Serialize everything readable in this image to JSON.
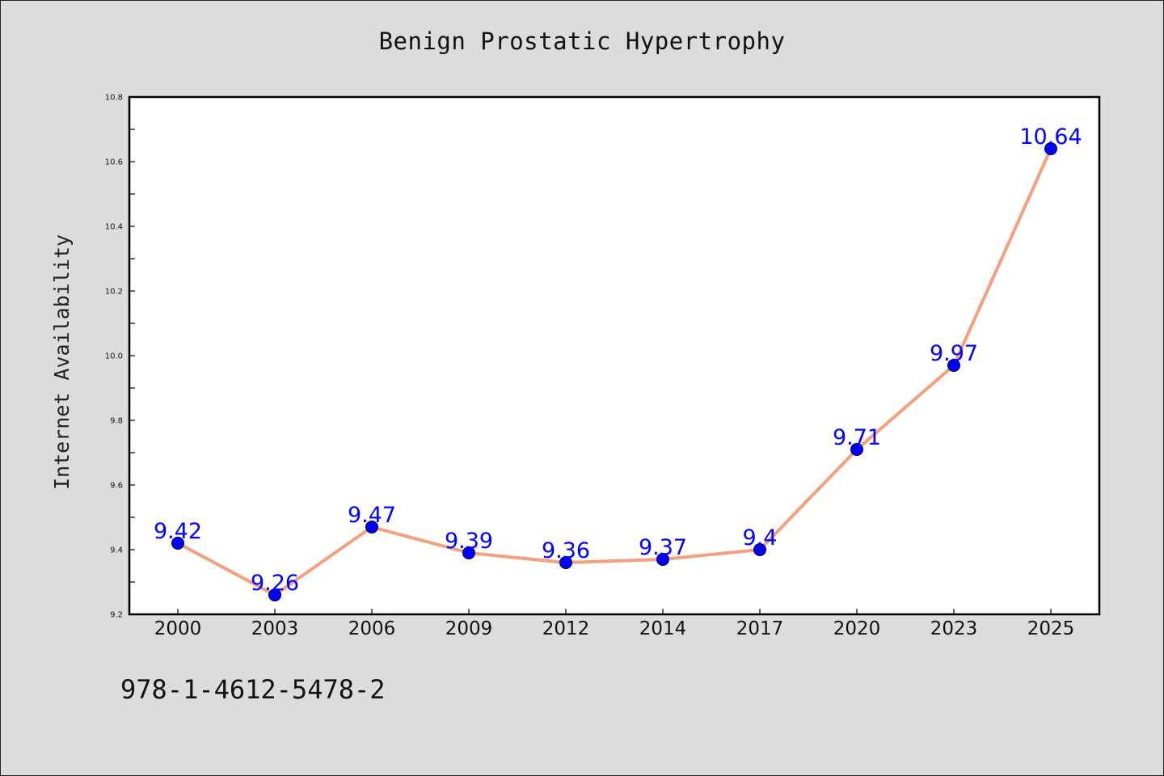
{
  "chart_data": {
    "type": "line",
    "title": "Benign Prostatic Hypertrophy",
    "xlabel": "",
    "ylabel": "Internet Availability",
    "categories": [
      "2000",
      "2003",
      "2006",
      "2009",
      "2012",
      "2014",
      "2017",
      "2020",
      "2023",
      "2025"
    ],
    "series": [
      {
        "values": [
          9.42,
          9.26,
          9.47,
          9.39,
          9.36,
          9.37,
          9.4,
          9.71,
          9.97,
          10.64
        ],
        "data_labels": [
          "9.42",
          "9.26",
          "9.47",
          "9.39",
          "9.36",
          "9.37",
          "9.4",
          "9.71",
          "9.97",
          "10.64"
        ],
        "line_color": "#f4a07e",
        "marker_color": "#0000ff"
      }
    ],
    "ylim": [
      9.2,
      10.8
    ],
    "yticks": [
      "9.2",
      "9.4",
      "9.6",
      "9.8",
      "10.0",
      "10.2",
      "10.4",
      "10.6",
      "10.8"
    ],
    "grid": false,
    "legend": "none",
    "background_color": "#dcdcdc",
    "plot_background_color": "#ffffff"
  },
  "footer": {
    "isbn": "978-1-4612-5478-2"
  }
}
